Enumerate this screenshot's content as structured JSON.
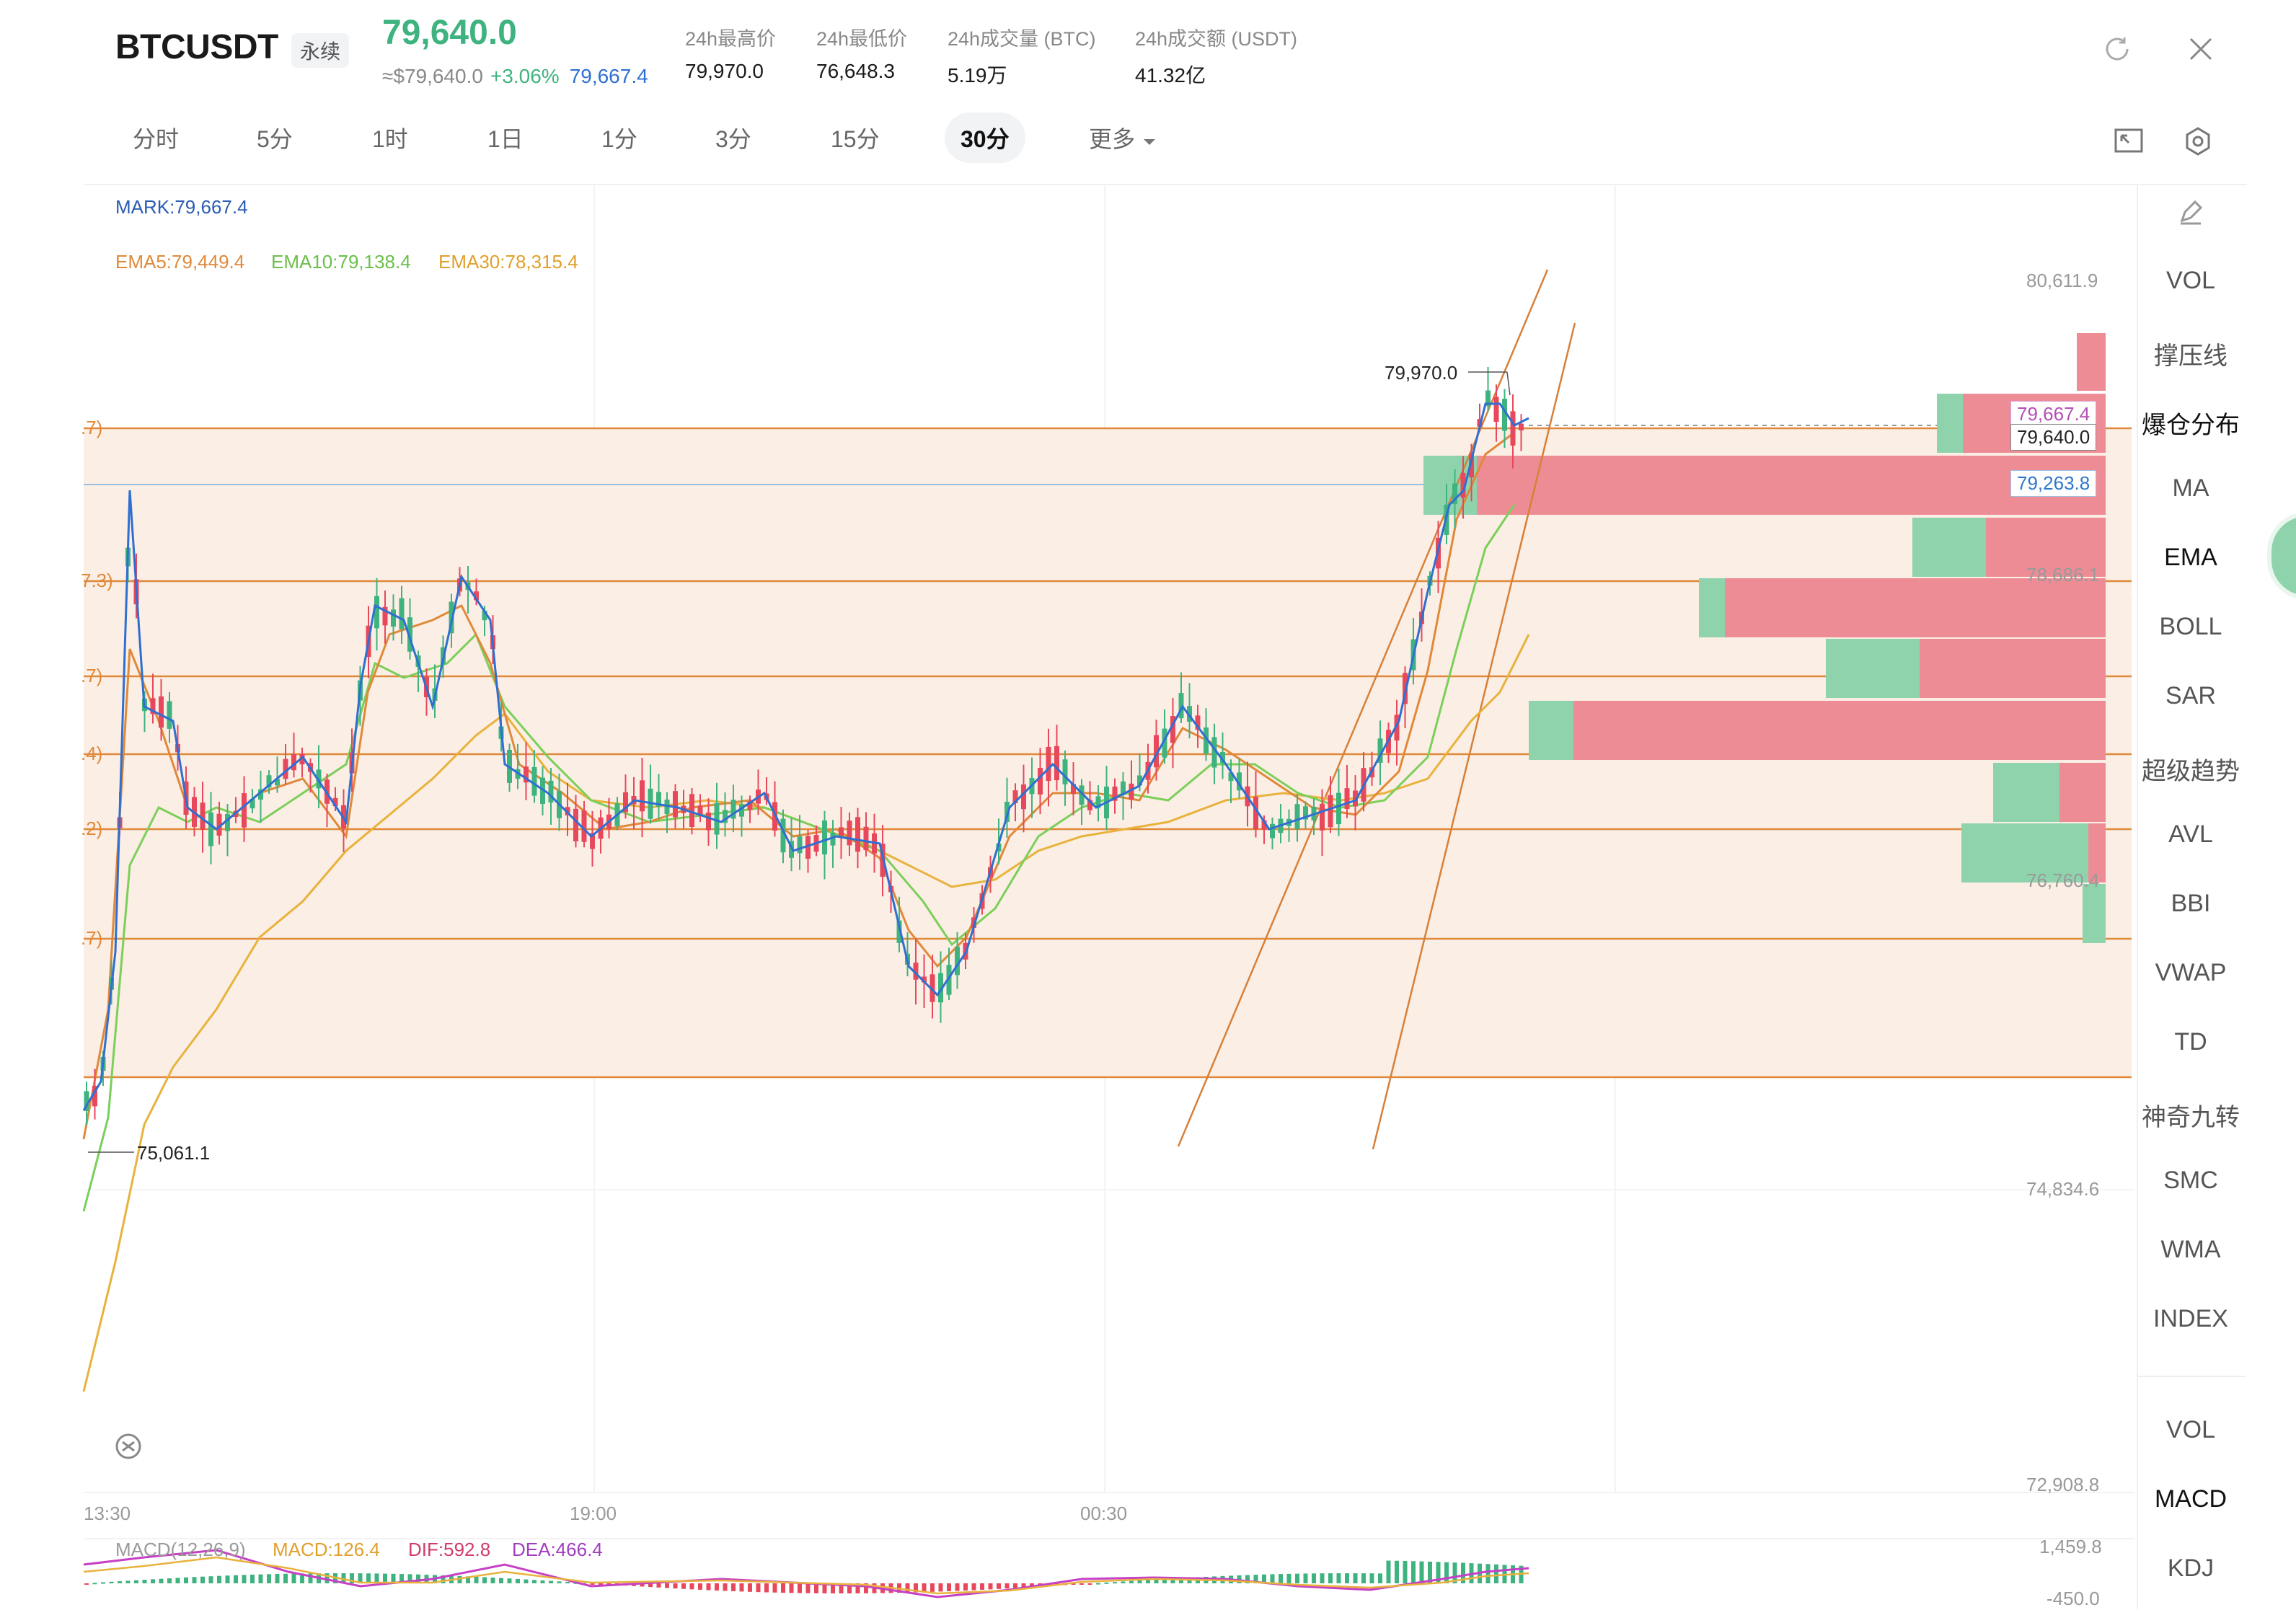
{
  "header": {
    "symbol": "BTCUSDT",
    "badge": "永续",
    "last_price": "79,640.0",
    "usd_price": "≈$79,640.0",
    "change_pct": "+3.06%",
    "mark_price": "79,667.4",
    "stats": [
      {
        "label": "24h最高价",
        "value": "79,970.0"
      },
      {
        "label": "24h最低价",
        "value": "76,648.3"
      },
      {
        "label": "24h成交量 (BTC)",
        "value": "5.19万"
      },
      {
        "label": "24h成交额 (USDT)",
        "value": "41.32亿"
      }
    ],
    "refresh_icon": "refresh-icon",
    "close_icon": "close-icon"
  },
  "tabs": [
    "分时",
    "5分",
    "1时",
    "1日",
    "1分",
    "3分",
    "15分",
    "30分",
    "更多"
  ],
  "active_tab": "30分",
  "chart": {
    "mark_label": "MARK:79,667.4",
    "ema5": "EMA5:79,449.4",
    "ema10": "EMA10:79,138.4",
    "ema30": "EMA30:78,315.4",
    "price_axis": [
      "80,611.9",
      "78,686.1",
      "76,760.4",
      "74,834.6",
      "72,908.8"
    ],
    "time_axis": [
      "13:30",
      "19:00",
      "00:30"
    ],
    "high_label": "79,970.0",
    "low_label": "75,061.1",
    "tag_mark": "79,667.4",
    "tag_last": "79,640.0",
    "tag_line": "79,263.8",
    "left_cut_labels": [
      ".7)",
      "7.3)",
      ".7)",
      ".4)",
      ".2)",
      ".7)"
    ],
    "colors": {
      "up": "#3fb37f",
      "down": "#e8485b",
      "ema5": "#e0893a",
      "ema10": "#7bcf5a",
      "ema30": "#e8b23c",
      "band": "#fbeee4"
    }
  },
  "macd": {
    "title": "MACD(12,26,9)",
    "macd": "MACD:126.4",
    "dif": "DIF:592.8",
    "dea": "DEA:466.4",
    "axis_top": "1,459.8",
    "axis_bottom": "-450.0"
  },
  "sidebar": {
    "indicators": [
      "VOL",
      "撑压线",
      "爆仓分布",
      "MA",
      "EMA",
      "BOLL",
      "SAR",
      "超级趋势",
      "AVL",
      "BBI",
      "VWAP",
      "TD",
      "神奇九转",
      "SMC",
      "WMA",
      "INDEX"
    ],
    "sub_indicators": [
      "VOL",
      "MACD",
      "KDJ"
    ]
  }
}
